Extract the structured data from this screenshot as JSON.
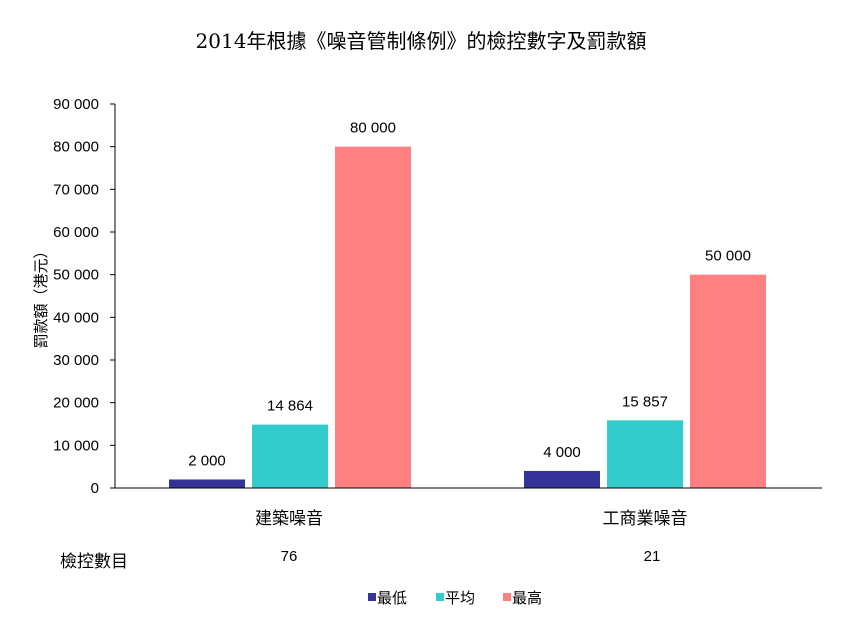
{
  "chart_data": {
    "type": "bar",
    "title": "2014年根據《噪音管制條例》的檢控數字及罰款額",
    "ylabel": "罰款額（港元）",
    "xlabel": "",
    "categories": [
      "建築噪音",
      "工商業噪音"
    ],
    "series": [
      {
        "name": "最低",
        "values": [
          2000,
          4000
        ],
        "color": "#333399"
      },
      {
        "name": "平均",
        "values": [
          14864,
          15857
        ],
        "color": "#33CCCC"
      },
      {
        "name": "最高",
        "values": [
          80000,
          50000
        ],
        "color": "#FF8080"
      }
    ],
    "data_labels": [
      [
        "2 000",
        "4 000"
      ],
      [
        "14 864",
        "15 857"
      ],
      [
        "80 000",
        "50 000"
      ]
    ],
    "ylim": [
      0,
      90000
    ],
    "yticks": [
      "0",
      "10 000",
      "20 000",
      "30 000",
      "40 000",
      "50 000",
      "60 000",
      "70 000",
      "80 000",
      "90 000"
    ],
    "grid": false,
    "legend_position": "bottom",
    "table_row": {
      "label": "檢控數目",
      "values": [
        "76",
        "21"
      ]
    }
  }
}
